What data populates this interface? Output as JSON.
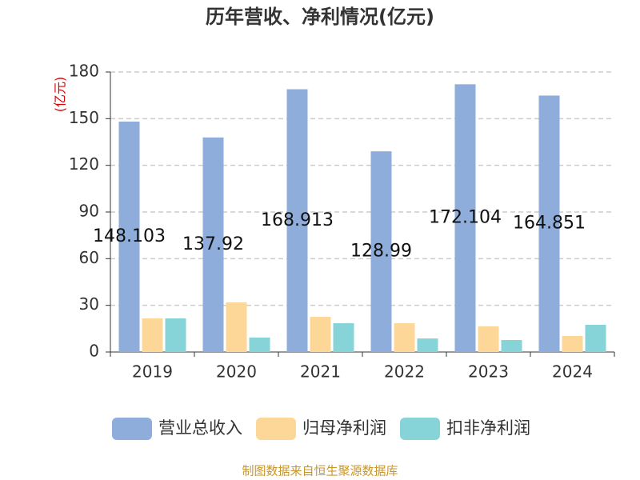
{
  "chart_data": {
    "type": "bar",
    "title": "历年营收、净利情况(亿元)",
    "y_label": "(亿元)",
    "categories": [
      "2019",
      "2020",
      "2021",
      "2022",
      "2023",
      "2024"
    ],
    "series": [
      {
        "name": "营业总收入",
        "color": "#8eadda",
        "values": [
          148.103,
          137.92,
          168.913,
          128.99,
          172.104,
          164.851
        ],
        "data_labels": true
      },
      {
        "name": "归母净利润",
        "color": "#fdd797",
        "values": [
          21.6,
          31.9,
          22.6,
          18.5,
          16.5,
          10.3
        ]
      },
      {
        "name": "扣非净利润",
        "color": "#86d4d8",
        "values": [
          21.6,
          9.3,
          18.5,
          8.7,
          7.7,
          17.5
        ]
      }
    ],
    "ylim": [
      0,
      180
    ],
    "yticks": [
      0,
      30,
      60,
      90,
      120,
      150,
      180
    ],
    "grid": true,
    "legend": "bottom",
    "source": "制图数据来自恒生聚源数据库"
  }
}
